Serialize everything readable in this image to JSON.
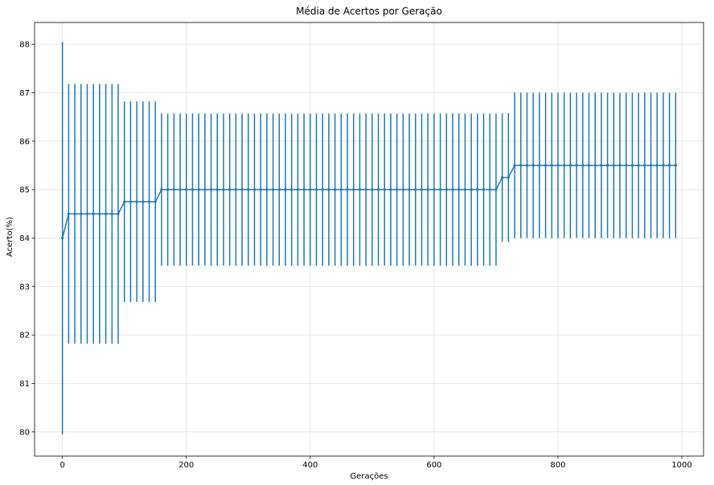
{
  "chart_data": {
    "type": "line",
    "title": "Média de Acertos por Geração",
    "xlabel": "Gerações",
    "ylabel": "Acerto(%)",
    "xlim": [
      -45,
      1035
    ],
    "ylim": [
      79.5,
      88.45
    ],
    "xticks": [
      0,
      200,
      400,
      600,
      800,
      1000
    ],
    "yticks": [
      80,
      81,
      82,
      83,
      84,
      85,
      86,
      87,
      88
    ],
    "grid": true,
    "colors": {
      "series": "#1f77b4",
      "grid": "#e0e0e0",
      "axis": "#000000"
    },
    "series": [
      {
        "error_bars": true,
        "segments": [
          {
            "x_start": 0,
            "x_end": 0,
            "step": 10,
            "mean": 84.0,
            "low": 79.95,
            "high": 88.05
          },
          {
            "x_start": 10,
            "x_end": 90,
            "step": 10,
            "mean": 84.5,
            "low": 81.82,
            "high": 87.18
          },
          {
            "x_start": 100,
            "x_end": 150,
            "step": 10,
            "mean": 84.75,
            "low": 82.68,
            "high": 86.82
          },
          {
            "x_start": 160,
            "x_end": 700,
            "step": 10,
            "mean": 85.0,
            "low": 83.43,
            "high": 86.57
          },
          {
            "x_start": 710,
            "x_end": 720,
            "step": 10,
            "mean": 85.25,
            "low": 83.92,
            "high": 86.58
          },
          {
            "x_start": 730,
            "x_end": 990,
            "step": 10,
            "mean": 85.5,
            "low": 84.0,
            "high": 87.0
          }
        ]
      }
    ]
  }
}
